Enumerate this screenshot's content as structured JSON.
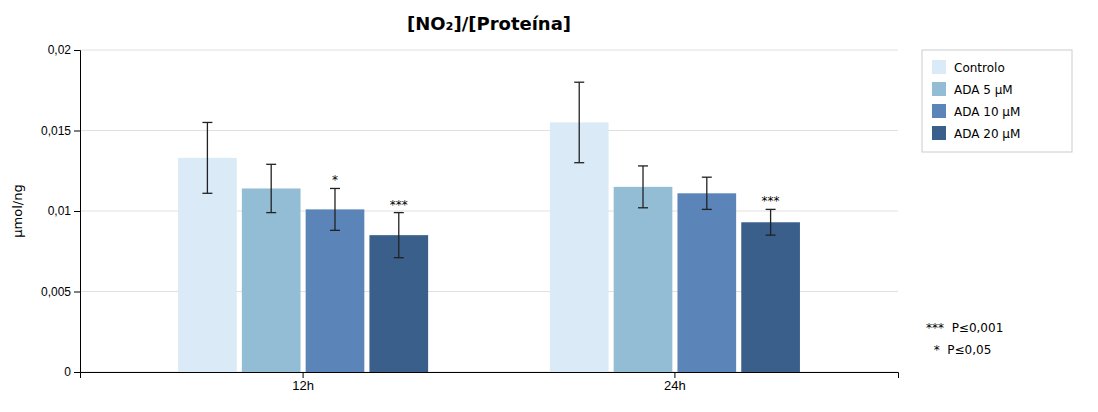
{
  "chart_data": {
    "type": "bar",
    "title": "[NO₂]/[Proteína]",
    "ylabel": "μmol/ng",
    "categories": [
      "12h",
      "24h"
    ],
    "series": [
      {
        "name": "Controlo",
        "color": "#daeaf7",
        "values": [
          0.0133,
          0.0155
        ],
        "errors": [
          0.0022,
          0.0025
        ],
        "significance": [
          null,
          null
        ]
      },
      {
        "name": "ADA 5 μM",
        "color": "#93bdd4",
        "values": [
          0.0114,
          0.0115
        ],
        "errors": [
          0.0015,
          0.0013
        ],
        "significance": [
          null,
          null
        ]
      },
      {
        "name": "ADA 10 μM",
        "color": "#5b84b8",
        "values": [
          0.0101,
          0.0111
        ],
        "errors": [
          0.0013,
          0.001
        ],
        "significance": [
          "*",
          null
        ]
      },
      {
        "name": "ADA 20 μM",
        "color": "#3a5f8a",
        "values": [
          0.0085,
          0.0093
        ],
        "errors": [
          0.0014,
          0.0008
        ],
        "significance": [
          "***",
          "***"
        ]
      }
    ],
    "ylim": [
      0,
      0.02
    ],
    "yticks": [
      0,
      {
        "value": 0.005,
        "label": "0,005"
      },
      {
        "value": 0.01,
        "label": "0,01"
      },
      {
        "value": 0.015,
        "label": "0,015"
      },
      {
        "value": 0.02,
        "label": "0,02"
      }
    ],
    "grid": true,
    "legend": "right",
    "annotations": [
      "***  P≤0,001",
      "  *  P≤0,05"
    ]
  }
}
